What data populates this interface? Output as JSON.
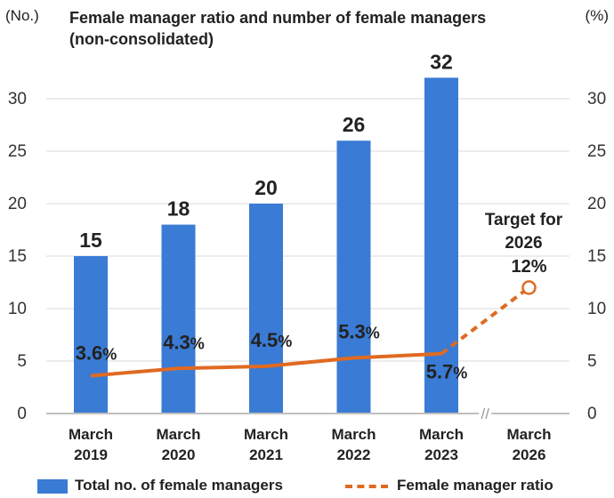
{
  "chart_data": {
    "type": "bar",
    "title_lines": [
      "Female manager ratio and number of female managers",
      "(non-consolidated)"
    ],
    "left_unit": "(No.)",
    "right_unit": "(%)",
    "categories": [
      [
        "March",
        "2019"
      ],
      [
        "March",
        "2020"
      ],
      [
        "March",
        "2021"
      ],
      [
        "March",
        "2022"
      ],
      [
        "March",
        "2023"
      ],
      [
        "March",
        "2026"
      ]
    ],
    "ylim": [
      0,
      35
    ],
    "y_ticks": [
      0,
      5,
      10,
      15,
      20,
      25,
      30
    ],
    "series": [
      {
        "name": "Total no. of female managers",
        "type": "bar",
        "color": "#3a7bd5",
        "values": [
          15,
          18,
          20,
          26,
          32,
          null
        ],
        "labels": [
          "15",
          "18",
          "20",
          "26",
          "32",
          ""
        ]
      },
      {
        "name": "Female manager ratio",
        "type": "line",
        "color": "#e06a22",
        "values": [
          3.6,
          4.3,
          4.5,
          5.3,
          5.7,
          12
        ],
        "labels": [
          "3.6",
          "4.3",
          "4.5",
          "5.3",
          "5.7",
          "12%"
        ],
        "label_unit": "%"
      }
    ],
    "target_annotation": [
      "Target for",
      "2026"
    ],
    "axis_break": "//",
    "grid": true,
    "legend_position": "bottom"
  }
}
